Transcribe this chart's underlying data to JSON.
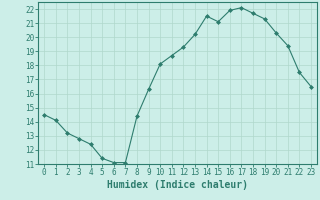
{
  "x": [
    0,
    1,
    2,
    3,
    4,
    5,
    6,
    7,
    8,
    9,
    10,
    11,
    12,
    13,
    14,
    15,
    16,
    17,
    18,
    19,
    20,
    21,
    22,
    23
  ],
  "y": [
    14.5,
    14.1,
    13.2,
    12.8,
    12.4,
    11.4,
    11.1,
    11.1,
    14.4,
    16.3,
    18.1,
    18.7,
    19.3,
    20.2,
    21.5,
    21.1,
    21.9,
    22.1,
    21.7,
    21.3,
    20.3,
    19.4,
    17.5,
    16.5
  ],
  "line_color": "#2e7d6e",
  "marker": "D",
  "marker_size": 2,
  "bg_color": "#cceee8",
  "grid_color": "#b0d8cc",
  "xlabel": "Humidex (Indice chaleur)",
  "xlabel_fontsize": 7,
  "tick_fontsize": 5.5,
  "ylim": [
    11,
    22.5
  ],
  "yticks": [
    11,
    12,
    13,
    14,
    15,
    16,
    17,
    18,
    19,
    20,
    21,
    22
  ],
  "xticks": [
    0,
    1,
    2,
    3,
    4,
    5,
    6,
    7,
    8,
    9,
    10,
    11,
    12,
    13,
    14,
    15,
    16,
    17,
    18,
    19,
    20,
    21,
    22,
    23
  ]
}
